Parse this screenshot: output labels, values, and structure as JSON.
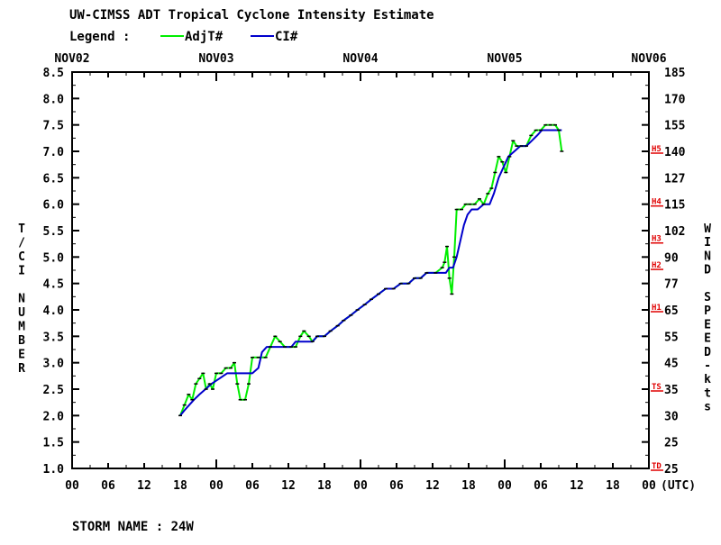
{
  "header": {
    "title": "UW-CIMSS ADT Tropical Cyclone Intensity Estimate",
    "legend_label": "Legend :",
    "legend_items": [
      {
        "name": "AdjT#",
        "color": "#00ee00"
      },
      {
        "name": "CI#",
        "color": "#0000cc"
      }
    ]
  },
  "footer": {
    "storm_name": "STORM NAME : 24W"
  },
  "chart_data": {
    "type": "line",
    "title": "UW-CIMSS ADT Tropical Cyclone Intensity Estimate",
    "x_unit_label": "(UTC)",
    "x_range": [
      "NOV02 00",
      "NOV06 00"
    ],
    "date_labels": [
      "NOV02",
      "NOV03",
      "NOV04",
      "NOV05",
      "NOV06"
    ],
    "hour_tick_labels": [
      "00",
      "06",
      "12",
      "18",
      "00",
      "06",
      "12",
      "18",
      "00",
      "06",
      "12",
      "18",
      "00",
      "06",
      "12",
      "18",
      "00"
    ],
    "ylabel_left": "T/CI NUMBER",
    "ylabel_right": "WIND SPEED-kts",
    "ylim": [
      1.0,
      8.5
    ],
    "y_ticks_left": [
      "1.0",
      "1.5",
      "2.0",
      "2.5",
      "3.0",
      "3.5",
      "4.0",
      "4.5",
      "5.0",
      "5.5",
      "6.0",
      "6.5",
      "7.0",
      "7.5",
      "8.0",
      "8.5"
    ],
    "y_ticks_right": [
      {
        "t": 1.0,
        "label": "25"
      },
      {
        "t": 1.5,
        "label": "25"
      },
      {
        "t": 2.0,
        "label": "30"
      },
      {
        "t": 2.5,
        "label": "35"
      },
      {
        "t": 3.0,
        "label": "45"
      },
      {
        "t": 3.5,
        "label": "55"
      },
      {
        "t": 4.0,
        "label": "65"
      },
      {
        "t": 4.5,
        "label": "77"
      },
      {
        "t": 5.0,
        "label": "90"
      },
      {
        "t": 5.5,
        "label": "102"
      },
      {
        "t": 6.0,
        "label": "115"
      },
      {
        "t": 6.5,
        "label": "127"
      },
      {
        "t": 7.0,
        "label": "140"
      },
      {
        "t": 7.5,
        "label": "155"
      },
      {
        "t": 8.0,
        "label": "170"
      },
      {
        "t": 8.5,
        "label": "185"
      }
    ],
    "category_markers": [
      {
        "label": "TD",
        "t": 1.0
      },
      {
        "label": "TS",
        "t": 2.5
      },
      {
        "label": "H1",
        "t": 4.0
      },
      {
        "label": "H2",
        "t": 4.8
      },
      {
        "label": "H3",
        "t": 5.3
      },
      {
        "label": "H4",
        "t": 6.0
      },
      {
        "label": "H5",
        "t": 7.0
      }
    ],
    "grid": false,
    "legend_placement": "top-left",
    "series": [
      {
        "name": "AdjT#",
        "color": "#00ee00",
        "points": [
          [
            18.0,
            2.0
          ],
          [
            18.7,
            2.2
          ],
          [
            19.4,
            2.4
          ],
          [
            20.0,
            2.3
          ],
          [
            20.6,
            2.6
          ],
          [
            21.2,
            2.7
          ],
          [
            21.8,
            2.8
          ],
          [
            22.3,
            2.5
          ],
          [
            22.9,
            2.6
          ],
          [
            23.4,
            2.5
          ],
          [
            24.0,
            2.8
          ],
          [
            24.8,
            2.8
          ],
          [
            25.6,
            2.9
          ],
          [
            26.4,
            2.9
          ],
          [
            27.0,
            3.0
          ],
          [
            27.5,
            2.6
          ],
          [
            28.0,
            2.3
          ],
          [
            28.8,
            2.3
          ],
          [
            29.4,
            2.6
          ],
          [
            30.0,
            3.1
          ],
          [
            31.0,
            3.1
          ],
          [
            32.2,
            3.1
          ],
          [
            33.0,
            3.3
          ],
          [
            33.8,
            3.5
          ],
          [
            34.6,
            3.4
          ],
          [
            35.4,
            3.3
          ],
          [
            36.5,
            3.3
          ],
          [
            37.2,
            3.3
          ],
          [
            38.0,
            3.5
          ],
          [
            38.6,
            3.6
          ],
          [
            39.4,
            3.5
          ],
          [
            40.0,
            3.4
          ],
          [
            40.8,
            3.5
          ],
          [
            42.0,
            3.5
          ],
          [
            43.0,
            3.6
          ],
          [
            44.2,
            3.7
          ],
          [
            45.2,
            3.8
          ],
          [
            46.4,
            3.9
          ],
          [
            47.5,
            4.0
          ],
          [
            48.7,
            4.1
          ],
          [
            49.8,
            4.2
          ],
          [
            51.0,
            4.3
          ],
          [
            52.2,
            4.4
          ],
          [
            53.5,
            4.4
          ],
          [
            54.7,
            4.5
          ],
          [
            56.0,
            4.5
          ],
          [
            57.0,
            4.6
          ],
          [
            58.0,
            4.6
          ],
          [
            59.0,
            4.7
          ],
          [
            60.5,
            4.7
          ],
          [
            61.6,
            4.8
          ],
          [
            62.0,
            4.9
          ],
          [
            62.4,
            5.2
          ],
          [
            62.8,
            4.6
          ],
          [
            63.2,
            4.3
          ],
          [
            63.6,
            5.0
          ],
          [
            64.0,
            5.9
          ],
          [
            64.8,
            5.9
          ],
          [
            65.5,
            6.0
          ],
          [
            66.2,
            6.0
          ],
          [
            67.0,
            6.0
          ],
          [
            67.8,
            6.1
          ],
          [
            68.5,
            6.0
          ],
          [
            69.2,
            6.2
          ],
          [
            69.8,
            6.3
          ],
          [
            70.4,
            6.6
          ],
          [
            71.0,
            6.9
          ],
          [
            71.6,
            6.8
          ],
          [
            72.2,
            6.6
          ],
          [
            72.8,
            6.9
          ],
          [
            73.4,
            7.2
          ],
          [
            74.0,
            7.1
          ],
          [
            74.8,
            7.1
          ],
          [
            75.6,
            7.1
          ],
          [
            76.4,
            7.3
          ],
          [
            77.2,
            7.4
          ],
          [
            78.0,
            7.4
          ],
          [
            78.8,
            7.5
          ],
          [
            79.6,
            7.5
          ],
          [
            80.4,
            7.5
          ],
          [
            81.0,
            7.4
          ],
          [
            81.5,
            7.0
          ]
        ]
      },
      {
        "name": "CI#",
        "color": "#0000cc",
        "points": [
          [
            18.0,
            2.0
          ],
          [
            18.7,
            2.1
          ],
          [
            19.5,
            2.2
          ],
          [
            20.3,
            2.3
          ],
          [
            21.2,
            2.4
          ],
          [
            22.2,
            2.5
          ],
          [
            23.2,
            2.6
          ],
          [
            24.5,
            2.7
          ],
          [
            25.8,
            2.8
          ],
          [
            27.0,
            2.8
          ],
          [
            28.0,
            2.8
          ],
          [
            29.0,
            2.8
          ],
          [
            30.0,
            2.8
          ],
          [
            31.0,
            2.9
          ],
          [
            31.6,
            3.2
          ],
          [
            32.4,
            3.3
          ],
          [
            33.5,
            3.3
          ],
          [
            34.5,
            3.3
          ],
          [
            35.5,
            3.3
          ],
          [
            36.5,
            3.3
          ],
          [
            37.2,
            3.4
          ],
          [
            38.5,
            3.4
          ],
          [
            39.3,
            3.4
          ],
          [
            40.0,
            3.4
          ],
          [
            40.8,
            3.5
          ],
          [
            42.0,
            3.5
          ],
          [
            43.0,
            3.6
          ],
          [
            44.2,
            3.7
          ],
          [
            45.2,
            3.8
          ],
          [
            46.4,
            3.9
          ],
          [
            47.5,
            4.0
          ],
          [
            48.7,
            4.1
          ],
          [
            49.8,
            4.2
          ],
          [
            51.0,
            4.3
          ],
          [
            52.2,
            4.4
          ],
          [
            53.5,
            4.4
          ],
          [
            54.7,
            4.5
          ],
          [
            56.0,
            4.5
          ],
          [
            57.0,
            4.6
          ],
          [
            58.0,
            4.6
          ],
          [
            59.0,
            4.7
          ],
          [
            60.5,
            4.7
          ],
          [
            61.6,
            4.7
          ],
          [
            62.2,
            4.7
          ],
          [
            62.8,
            4.8
          ],
          [
            63.4,
            4.8
          ],
          [
            64.0,
            5.0
          ],
          [
            64.6,
            5.3
          ],
          [
            65.2,
            5.6
          ],
          [
            65.8,
            5.8
          ],
          [
            66.5,
            5.9
          ],
          [
            67.5,
            5.9
          ],
          [
            68.5,
            6.0
          ],
          [
            69.5,
            6.0
          ],
          [
            70.2,
            6.2
          ],
          [
            71.0,
            6.5
          ],
          [
            71.8,
            6.7
          ],
          [
            72.6,
            6.9
          ],
          [
            73.6,
            7.0
          ],
          [
            74.6,
            7.1
          ],
          [
            75.6,
            7.1
          ],
          [
            76.5,
            7.2
          ],
          [
            77.4,
            7.3
          ],
          [
            78.2,
            7.4
          ],
          [
            79.0,
            7.4
          ],
          [
            79.8,
            7.4
          ],
          [
            80.6,
            7.4
          ],
          [
            81.5,
            7.4
          ]
        ]
      }
    ]
  }
}
